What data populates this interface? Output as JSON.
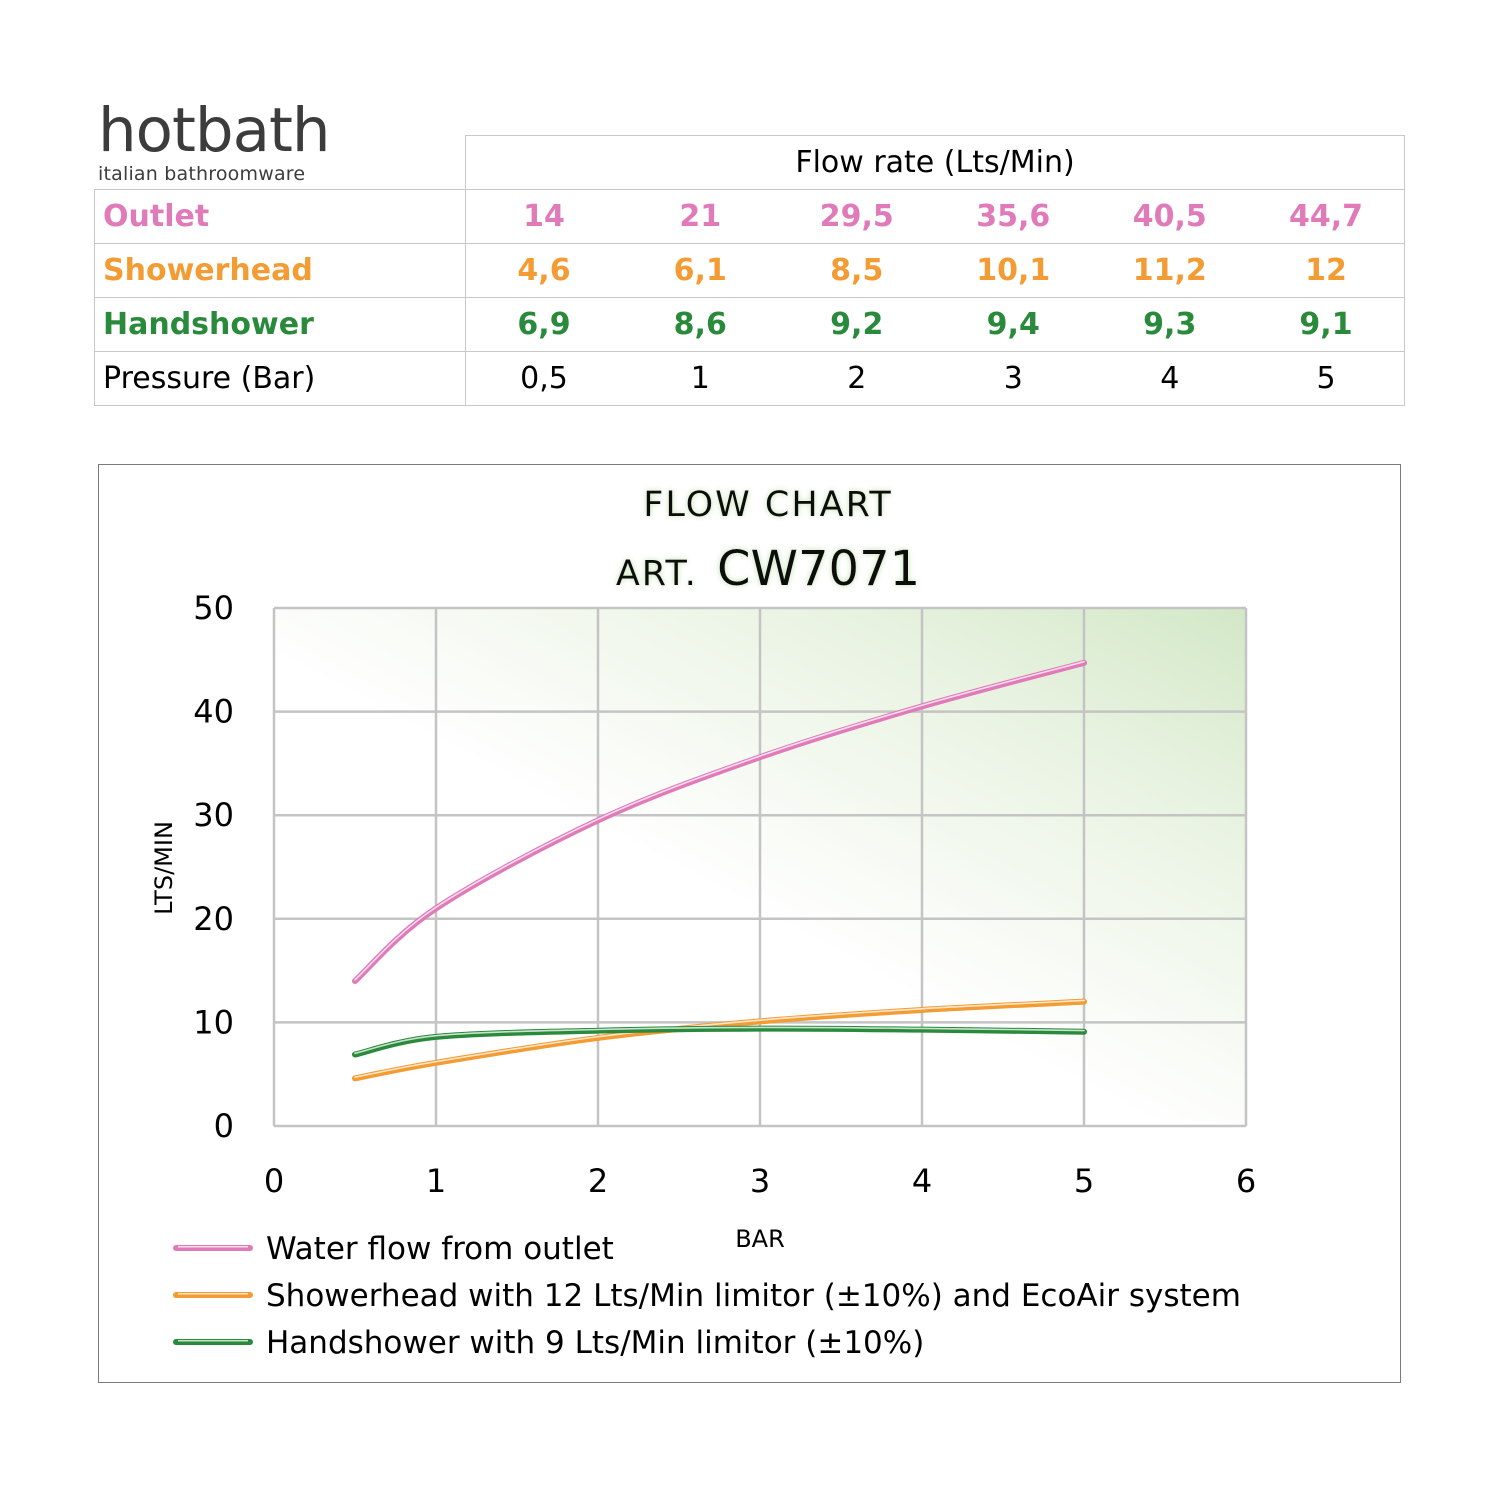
{
  "logo": {
    "brand": "hotbath",
    "tagline": "italian bathroomware"
  },
  "table": {
    "header": "Flow rate (Lts/Min)",
    "rows": [
      {
        "label": "Outlet",
        "values": [
          "14",
          "21",
          "29,5",
          "35,6",
          "40,5",
          "44,7"
        ],
        "color": "#e07ab8"
      },
      {
        "label": "Showerhead",
        "values": [
          "4,6",
          "6,1",
          "8,5",
          "10,1",
          "11,2",
          "12"
        ],
        "color": "#f39c33"
      },
      {
        "label": "Handshower",
        "values": [
          "6,9",
          "8,6",
          "9,2",
          "9,4",
          "9,3",
          "9,1"
        ],
        "color": "#2a8a3c"
      },
      {
        "label": "Pressure (Bar)",
        "values": [
          "0,5",
          "1",
          "2",
          "3",
          "4",
          "5"
        ],
        "color": "#000000"
      }
    ]
  },
  "chart_data": {
    "type": "line",
    "title": "FLOW CHART",
    "subtitle_prefix": "ART.",
    "subtitle_code": "CW7071",
    "xlabel": "BAR",
    "ylabel": "LTS/MIN",
    "xlim": [
      0,
      6
    ],
    "ylim": [
      0,
      50
    ],
    "xticks": [
      0,
      1,
      2,
      3,
      4,
      5,
      6
    ],
    "yticks": [
      0,
      10,
      20,
      30,
      40,
      50
    ],
    "grid": true,
    "legend_position": "bottom",
    "x": [
      0.5,
      1,
      2,
      3,
      4,
      5
    ],
    "series": [
      {
        "name": "Water flow from outlet",
        "values": [
          14,
          21,
          29.5,
          35.6,
          40.5,
          44.7
        ],
        "color": "#e07ab8"
      },
      {
        "name": "Showerhead with 12 Lts/Min limitor (±10%) and EcoAir system",
        "values": [
          4.6,
          6.1,
          8.5,
          10.1,
          11.2,
          12
        ],
        "color": "#f39c33"
      },
      {
        "name": "Handshower with 9 Lts/Min limitor (±10%)",
        "values": [
          6.9,
          8.6,
          9.2,
          9.4,
          9.3,
          9.1
        ],
        "color": "#2a8a3c"
      }
    ]
  }
}
